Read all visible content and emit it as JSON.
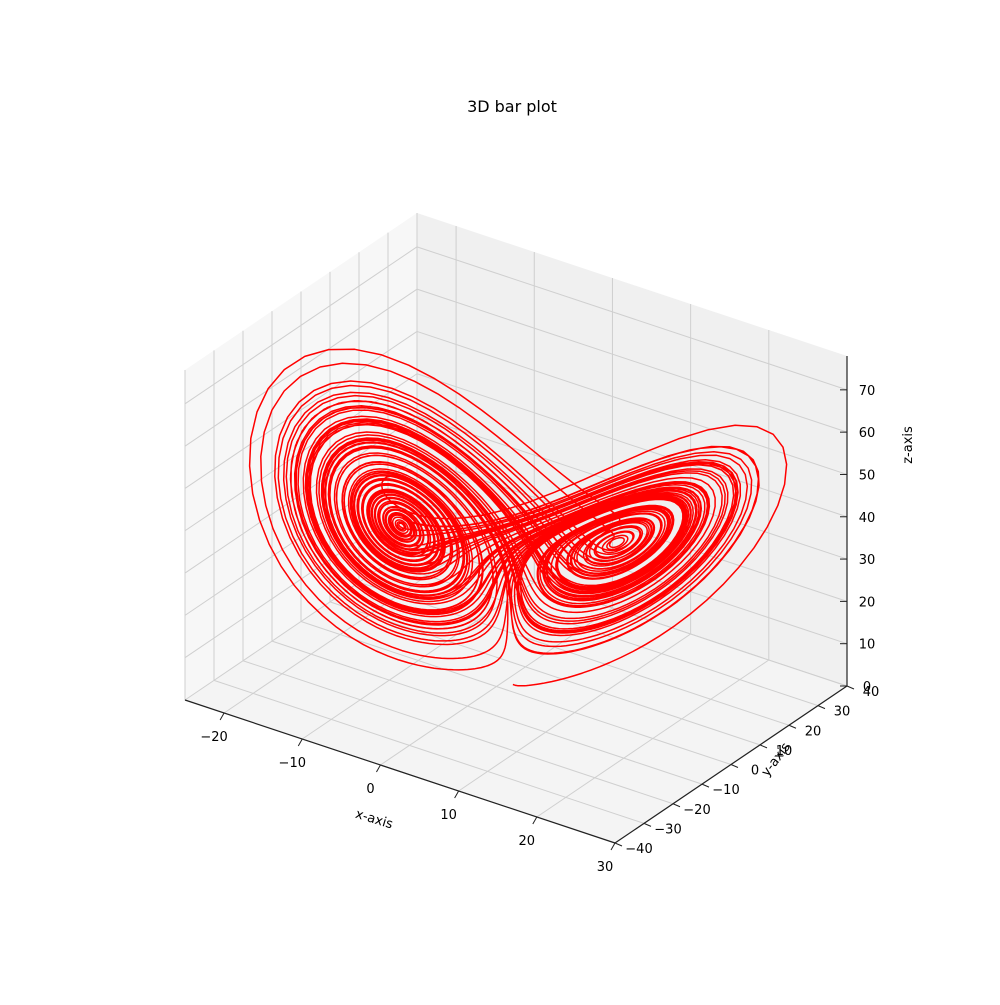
{
  "chart_data": {
    "type": "line",
    "projection": "3d",
    "title": "3D bar plot",
    "xlabel": "x-axis",
    "ylabel": "y-axis",
    "zlabel": "z-axis",
    "x_ticks": [
      "−20",
      "−10",
      "0",
      "10",
      "20",
      "30"
    ],
    "y_ticks": [
      "−40",
      "−30",
      "−20",
      "−10",
      "0",
      "10",
      "20",
      "30",
      "40"
    ],
    "z_ticks": [
      "0",
      "10",
      "20",
      "30",
      "40",
      "50",
      "60",
      "70"
    ],
    "xlim": [
      -25,
      30
    ],
    "ylim": [
      -40,
      40
    ],
    "zlim": [
      0,
      78
    ],
    "grid": true,
    "series": [
      {
        "color": "#ff0000",
        "curve": "lorenz",
        "sigma": 10,
        "rho": 28,
        "beta": 2.667,
        "initial": [
          0,
          1,
          1.05
        ],
        "x_range": [
          -23,
          27
        ],
        "y_range": [
          -28,
          33
        ],
        "z_range": [
          0,
          73
        ]
      }
    ]
  }
}
